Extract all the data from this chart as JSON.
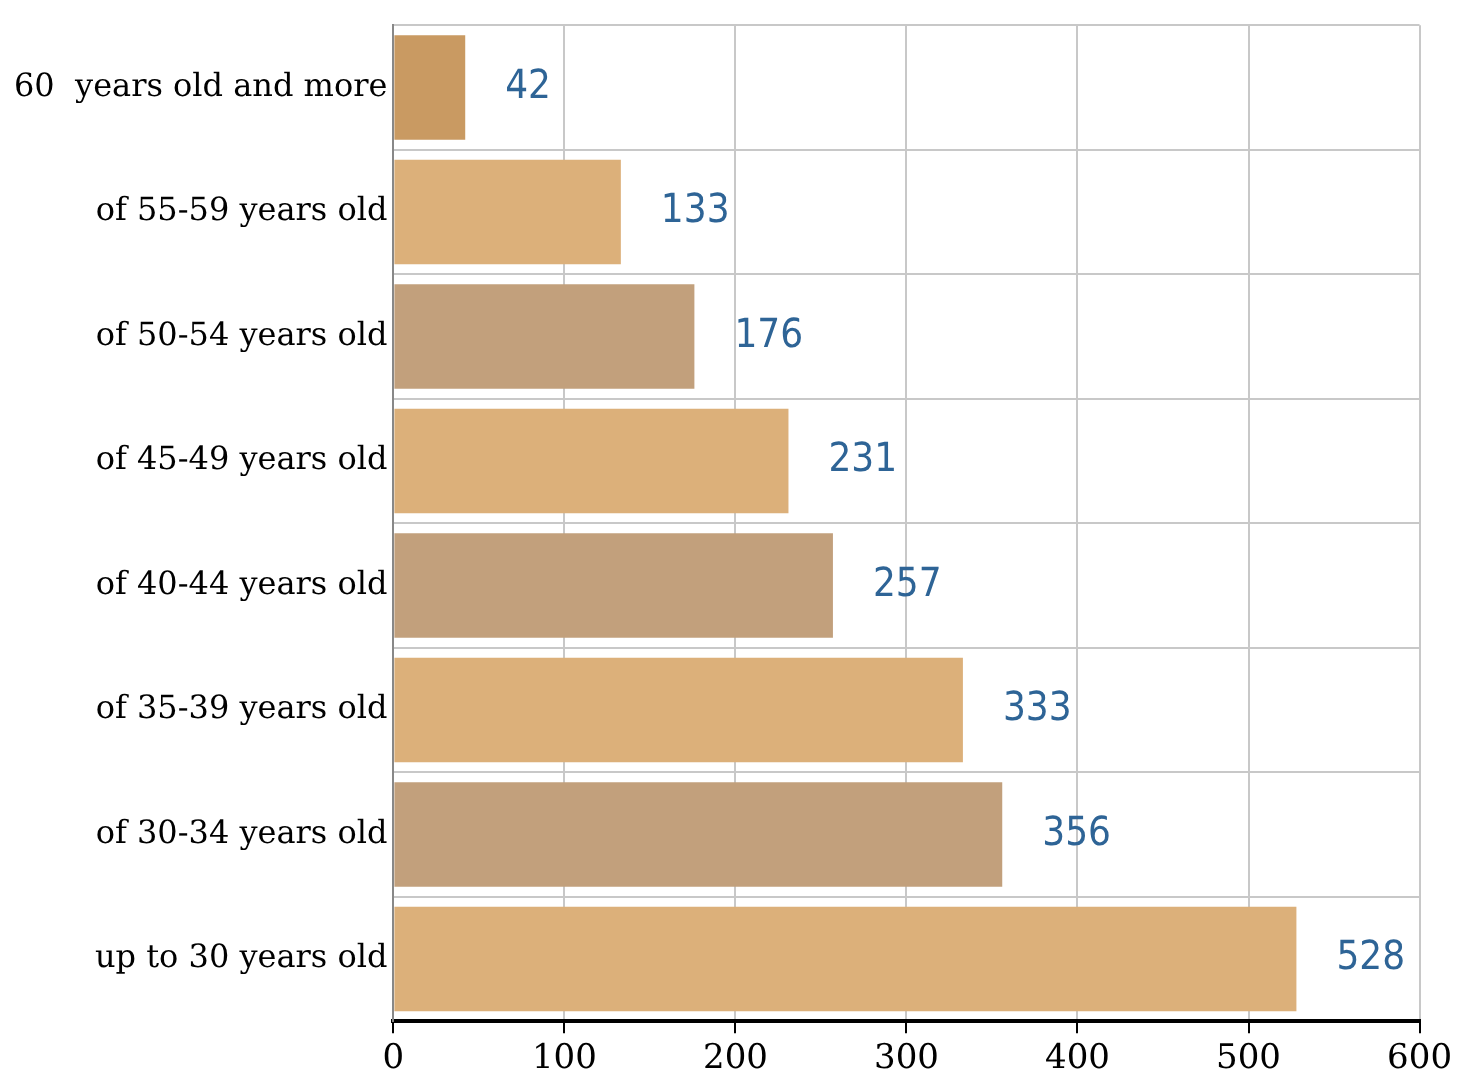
{
  "chart_data": {
    "type": "bar",
    "orientation": "horizontal",
    "categories": [
      "60  years old and more",
      "of 55-59 years old",
      "of 50-54 years old",
      "of 45-49 years old",
      "of 40-44 years old",
      "of 35-39 years old",
      "of 30-34 years old",
      "up to 30 years old"
    ],
    "values": [
      42,
      133,
      176,
      231,
      257,
      333,
      356,
      528
    ],
    "colors": [
      "#c99a62",
      "#dcb07a",
      "#c2a07c",
      "#dcb07a",
      "#c2a07c",
      "#dcb07a",
      "#c2a07c",
      "#dcb07a"
    ],
    "xlim": [
      0,
      600
    ],
    "xticks": [
      0,
      100,
      200,
      300,
      400,
      500,
      600
    ],
    "grid": true,
    "data_labels": true
  }
}
